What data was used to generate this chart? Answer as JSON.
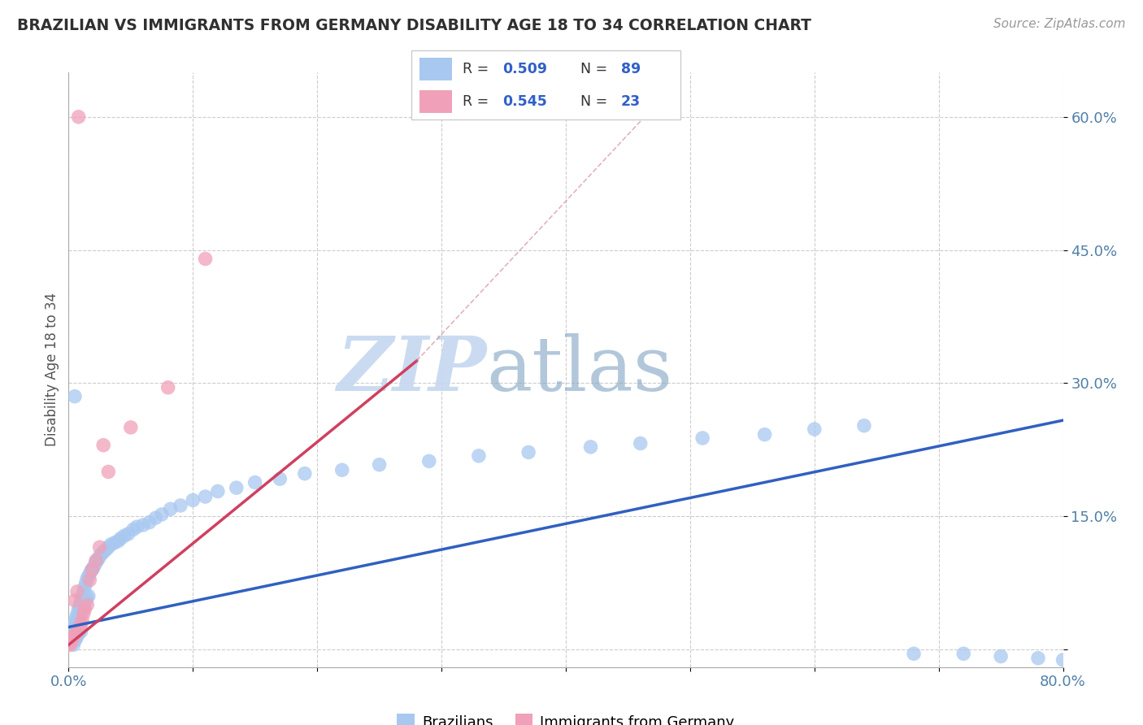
{
  "title": "BRAZILIAN VS IMMIGRANTS FROM GERMANY DISABILITY AGE 18 TO 34 CORRELATION CHART",
  "source": "Source: ZipAtlas.com",
  "ylabel": "Disability Age 18 to 34",
  "xlim": [
    0.0,
    0.8
  ],
  "ylim": [
    -0.02,
    0.65
  ],
  "r_brazilian": 0.509,
  "n_brazilian": 89,
  "r_germany": 0.545,
  "n_germany": 23,
  "color_brazilian": "#A8C8F0",
  "color_germany": "#F0A0B8",
  "line_color_brazilian": "#3060C0",
  "line_color_germany": "#D04060",
  "legend_label_brazilian": "Brazilians",
  "legend_label_germany": "Immigrants from Germany",
  "b_line_x0": 0.0,
  "b_line_y0": 0.025,
  "b_line_x1": 0.8,
  "b_line_y1": 0.258,
  "g_line_x0": 0.0,
  "g_line_y0": 0.005,
  "g_line_x1": 0.28,
  "g_line_y1": 0.325,
  "brazilian_x": [
    0.001,
    0.002,
    0.002,
    0.003,
    0.003,
    0.003,
    0.004,
    0.004,
    0.004,
    0.005,
    0.005,
    0.005,
    0.006,
    0.006,
    0.006,
    0.007,
    0.007,
    0.007,
    0.008,
    0.008,
    0.008,
    0.009,
    0.009,
    0.01,
    0.01,
    0.01,
    0.011,
    0.011,
    0.012,
    0.012,
    0.013,
    0.013,
    0.014,
    0.014,
    0.015,
    0.015,
    0.016,
    0.016,
    0.017,
    0.018,
    0.019,
    0.02,
    0.021,
    0.022,
    0.023,
    0.024,
    0.025,
    0.027,
    0.028,
    0.03,
    0.032,
    0.034,
    0.037,
    0.04,
    0.042,
    0.045,
    0.048,
    0.052,
    0.055,
    0.06,
    0.065,
    0.07,
    0.075,
    0.082,
    0.09,
    0.1,
    0.11,
    0.12,
    0.135,
    0.15,
    0.17,
    0.19,
    0.22,
    0.25,
    0.29,
    0.33,
    0.37,
    0.42,
    0.46,
    0.51,
    0.56,
    0.6,
    0.64,
    0.68,
    0.72,
    0.75,
    0.78,
    0.8,
    0.005
  ],
  "brazilian_y": [
    0.015,
    0.02,
    0.01,
    0.025,
    0.018,
    0.008,
    0.022,
    0.015,
    0.005,
    0.03,
    0.02,
    0.01,
    0.035,
    0.025,
    0.012,
    0.04,
    0.03,
    0.015,
    0.045,
    0.035,
    0.018,
    0.05,
    0.038,
    0.055,
    0.042,
    0.02,
    0.06,
    0.045,
    0.065,
    0.048,
    0.07,
    0.052,
    0.075,
    0.055,
    0.08,
    0.058,
    0.082,
    0.06,
    0.085,
    0.088,
    0.09,
    0.092,
    0.095,
    0.098,
    0.1,
    0.102,
    0.105,
    0.108,
    0.11,
    0.112,
    0.115,
    0.118,
    0.12,
    0.122,
    0.125,
    0.128,
    0.13,
    0.135,
    0.138,
    0.14,
    0.143,
    0.148,
    0.152,
    0.158,
    0.162,
    0.168,
    0.172,
    0.178,
    0.182,
    0.188,
    0.192,
    0.198,
    0.202,
    0.208,
    0.212,
    0.218,
    0.222,
    0.228,
    0.232,
    0.238,
    0.242,
    0.248,
    0.252,
    -0.005,
    -0.005,
    -0.008,
    -0.01,
    -0.012,
    0.285
  ],
  "germany_x": [
    0.001,
    0.002,
    0.003,
    0.004,
    0.005,
    0.006,
    0.007,
    0.008,
    0.009,
    0.01,
    0.011,
    0.012,
    0.013,
    0.015,
    0.017,
    0.019,
    0.022,
    0.025,
    0.028,
    0.032,
    0.05,
    0.08,
    0.11
  ],
  "germany_y": [
    0.005,
    0.008,
    0.012,
    0.015,
    0.055,
    0.018,
    0.065,
    0.6,
    0.025,
    0.028,
    0.032,
    0.04,
    0.045,
    0.05,
    0.078,
    0.09,
    0.1,
    0.115,
    0.23,
    0.2,
    0.25,
    0.295,
    0.44
  ]
}
